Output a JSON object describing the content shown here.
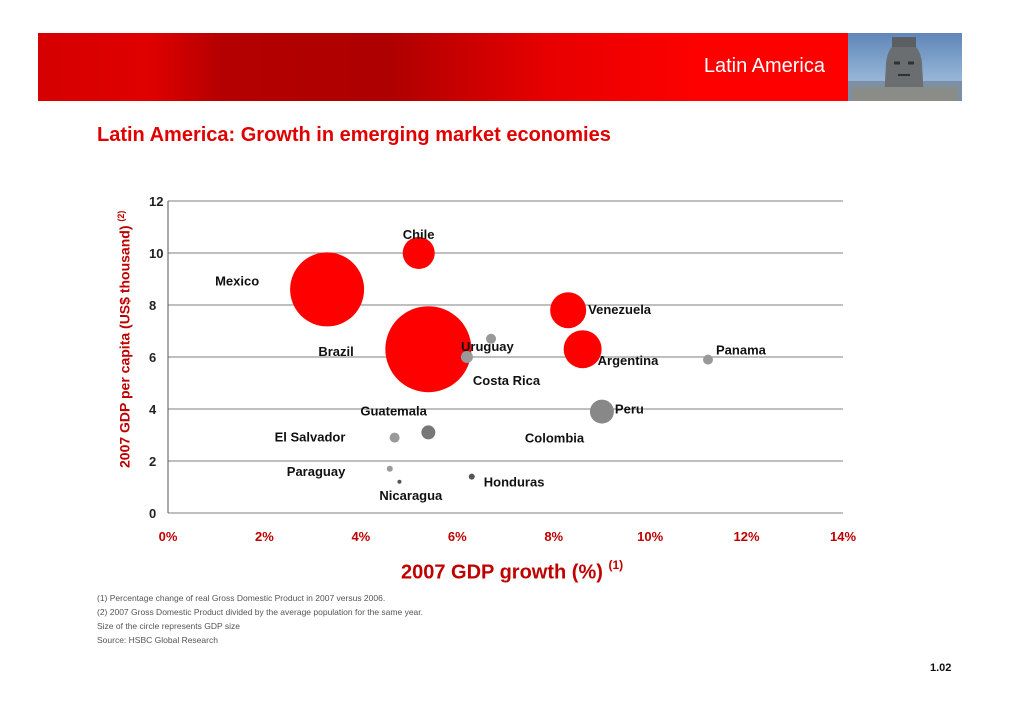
{
  "header": {
    "section_label": "Latin America"
  },
  "page_title": "Latin America: Growth in emerging market economies",
  "chart_data": {
    "type": "scatter",
    "subtype": "bubble",
    "xlabel": "2007 GDP growth (%)",
    "xlabel_note": "(1)",
    "ylabel": "2007 GDP per capita (US$ thousand)",
    "ylabel_note": "(2)",
    "xlim": [
      0,
      14
    ],
    "ylim": [
      0,
      12
    ],
    "x_ticks": [
      "0%",
      "2%",
      "4%",
      "6%",
      "8%",
      "10%",
      "12%",
      "14%"
    ],
    "y_ticks": [
      "0",
      "2",
      "4",
      "6",
      "8",
      "10",
      "12"
    ],
    "grid": "horizontal",
    "points": [
      {
        "label": "Chile",
        "x": 5.2,
        "y": 10.0,
        "size": 16,
        "color": "#ff0000"
      },
      {
        "label": "Mexico",
        "x": 3.3,
        "y": 8.6,
        "size": 37,
        "color": "#ff0000"
      },
      {
        "label": "Uruguay",
        "x": 6.7,
        "y": 6.7,
        "size": 5,
        "color": "#999999"
      },
      {
        "label": "Venezuela",
        "x": 8.3,
        "y": 7.8,
        "size": 18,
        "color": "#ff0000"
      },
      {
        "label": "Brazil",
        "x": 5.4,
        "y": 6.3,
        "size": 43,
        "color": "#ff0000"
      },
      {
        "label": "Argentina",
        "x": 8.6,
        "y": 6.3,
        "size": 19,
        "color": "#ff0000"
      },
      {
        "label": "Panama",
        "x": 11.2,
        "y": 5.9,
        "size": 5,
        "color": "#999999"
      },
      {
        "label": "Costa Rica",
        "x": 6.2,
        "y": 6.0,
        "size": 6,
        "color": "#999999"
      },
      {
        "label": "Guatemala",
        "x": 5.4,
        "y": 3.1,
        "size": 7,
        "color": "#777777"
      },
      {
        "label": "Peru",
        "x": 9.0,
        "y": 3.9,
        "size": 12,
        "color": "#888888"
      },
      {
        "label": "El Salvador",
        "x": 4.7,
        "y": 2.9,
        "size": 5,
        "color": "#999999"
      },
      {
        "label": "Colombia",
        "x": 9.0,
        "y": 3.9,
        "size": 0,
        "color": "#888888"
      },
      {
        "label": "Paraguay",
        "x": 4.6,
        "y": 1.7,
        "size": 3,
        "color": "#999999"
      },
      {
        "label": "Honduras",
        "x": 6.3,
        "y": 1.4,
        "size": 3,
        "color": "#555555"
      },
      {
        "label": "Nicaragua",
        "x": 4.8,
        "y": 1.2,
        "size": 2,
        "color": "#555555"
      }
    ]
  },
  "notes": [
    "(1) Percentage change of  real  Gross Domestic Product  in 2007 versus 2006.",
    "(2) 2007 Gross Domestic Product  divided by the average population for the same year.",
    "Size of the circle represents GDP size",
    "Source: HSBC Global Research"
  ],
  "page_number": "1.02",
  "colors": {
    "accent": "#e00000",
    "axis_title": "#c00000"
  }
}
